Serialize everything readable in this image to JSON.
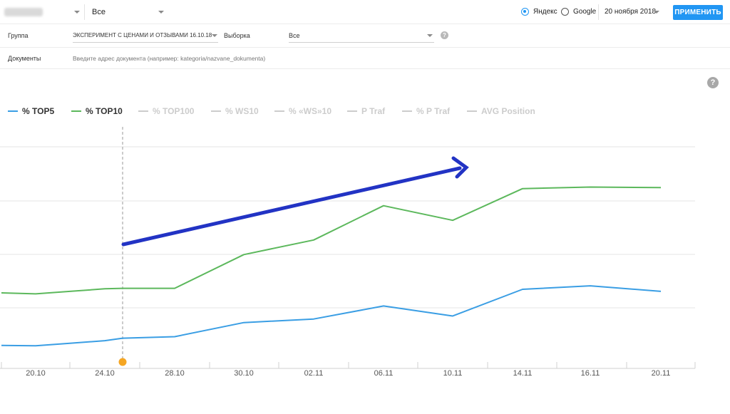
{
  "header": {
    "site_select_value": "",
    "region_select_value": "Все",
    "engine_options": [
      {
        "label": "Яндекс",
        "checked": true
      },
      {
        "label": "Google",
        "checked": false
      }
    ],
    "date_value": "20 ноября 2018",
    "apply_label": "ПРИМЕНИТЬ",
    "help_symbol": "?"
  },
  "filters": {
    "group_label": "Группа",
    "group_value": "ЭКСПЕРИМЕНТ С ЦЕНАМИ И ОТЗЫВАМИ 16.10.18",
    "sample_label": "Выборка",
    "sample_value": "Все",
    "documents_label": "Документы",
    "documents_placeholder": "Введите адрес документа (например: kategoria/nazvane_dokumenta)"
  },
  "colors": {
    "accent": "#2196f3",
    "top5": "#3a9ee4",
    "top10": "#5cb85c",
    "inactive": "#cccccc",
    "arrow": "#2233c4",
    "marker": "#f5a623"
  },
  "legend": [
    {
      "label": "% TOP5",
      "active": true,
      "color": "#3a9ee4"
    },
    {
      "label": "% TOP10",
      "active": true,
      "color": "#5cb85c"
    },
    {
      "label": "% TOP100",
      "active": false,
      "color": "#cccccc"
    },
    {
      "label": "% WS10",
      "active": false,
      "color": "#cccccc"
    },
    {
      "label": "% «WS»10",
      "active": false,
      "color": "#cccccc"
    },
    {
      "label": "P Traf",
      "active": false,
      "color": "#cccccc"
    },
    {
      "label": "% P Traf",
      "active": false,
      "color": "#cccccc"
    },
    {
      "label": "AVG Position",
      "active": false,
      "color": "#cccccc"
    }
  ],
  "chart_data": {
    "type": "line",
    "x": [
      "18.10",
      "20.10",
      "22.10",
      "24.10",
      "26.10",
      "28.10",
      "30.10",
      "02.11",
      "06.11",
      "10.11",
      "14.11",
      "16.11",
      "20.11"
    ],
    "tick_labels": [
      "20.10",
      "24.10",
      "28.10",
      "30.10",
      "02.11",
      "06.11",
      "10.11",
      "14.11",
      "16.11",
      "20.11"
    ],
    "series": [
      {
        "name": "% TOP5",
        "color": "#3a9ee4",
        "values": [
          0.55,
          0.5,
          1.0,
          1.5,
          2.0,
          2.3,
          5.1,
          5.8,
          8.4,
          6.4,
          11.7,
          12.4,
          11.3
        ]
      },
      {
        "name": "% TOP10",
        "color": "#5cb85c",
        "values": [
          11.0,
          10.8,
          11.3,
          11.8,
          11.9,
          11.9,
          18.6,
          21.5,
          28.3,
          25.4,
          31.7,
          32.0,
          31.9
        ]
      }
    ],
    "ylim": [
      -4,
      40
    ],
    "grid": true,
    "legend_position": "top-left",
    "annotation_date": "26.10"
  }
}
